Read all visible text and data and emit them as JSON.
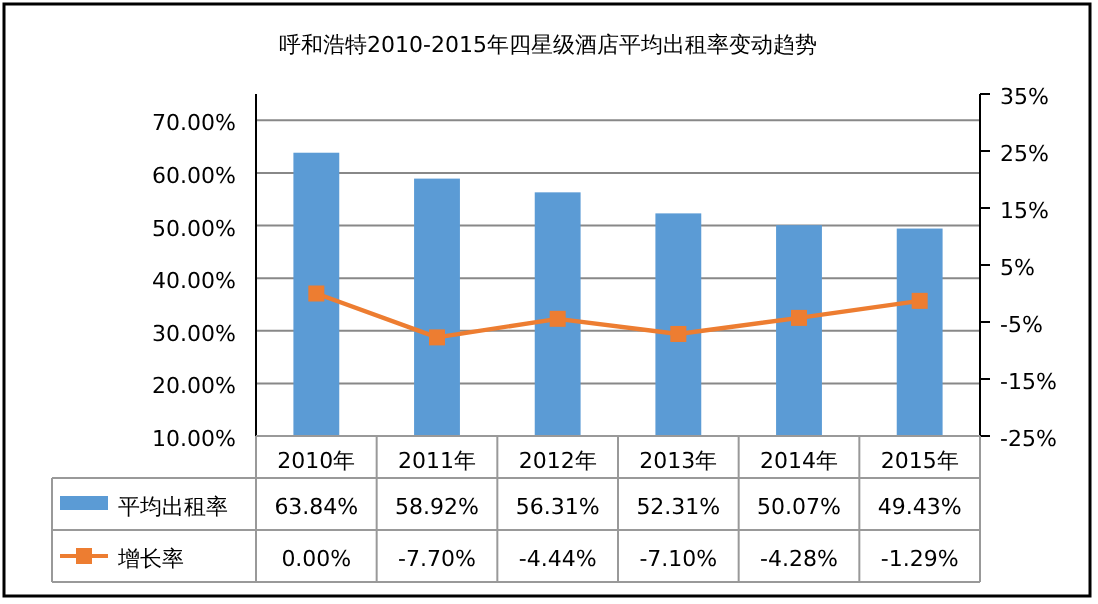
{
  "chart_data": {
    "type": "bar",
    "title": "呼和浩特2010-2015年四星级酒店平均出租率变动趋势",
    "categories": [
      "2010年",
      "2011年",
      "2012年",
      "2013年",
      "2014年",
      "2015年"
    ],
    "series": [
      {
        "name": "平均出租率",
        "color": "#5b9bd5",
        "values": [
          63.84,
          58.92,
          56.31,
          52.31,
          50.07,
          49.43
        ],
        "value_labels": [
          "63.84%",
          "58.92%",
          "56.31%",
          "52.31%",
          "50.07%",
          "49.43%"
        ]
      },
      {
        "name": "增长率",
        "type": "line",
        "axis": "y2",
        "color": "#ed7d31",
        "marker": "square",
        "values": [
          0,
          -7.7,
          -4.44,
          -7.1,
          -4.28,
          -1.29
        ],
        "value_labels": [
          "0.00%",
          "-7.70%",
          "-4.44%",
          "-7.10%",
          "-4.28%",
          "-1.29%"
        ]
      }
    ],
    "ylim": [
      10,
      75
    ],
    "yticks": [
      {
        "value": 10,
        "label": "10.00%"
      },
      {
        "value": 20,
        "label": "20.00%"
      },
      {
        "value": 30,
        "label": "30.00%"
      },
      {
        "value": 40,
        "label": "40.00%"
      },
      {
        "value": 50,
        "label": "50.00%"
      },
      {
        "value": 60,
        "label": "60.00%"
      },
      {
        "value": 70,
        "label": "70.00%"
      }
    ],
    "y2lim": [
      -25,
      35
    ],
    "y2ticks": [
      {
        "value": -25,
        "label": "-25%"
      },
      {
        "value": -15,
        "label": "-15%"
      },
      {
        "value": -5,
        "label": "-5%"
      },
      {
        "value": 5,
        "label": "5%"
      },
      {
        "value": 15,
        "label": "15%"
      },
      {
        "value": 25,
        "label": "25%"
      },
      {
        "value": 35,
        "label": "35%"
      }
    ],
    "grid": "y",
    "legend": "bottom"
  }
}
